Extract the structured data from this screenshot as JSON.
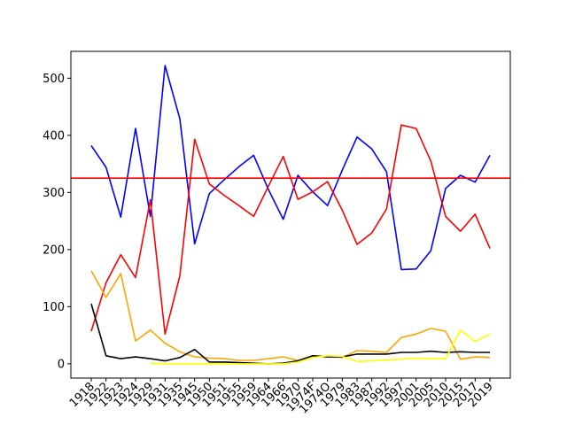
{
  "chart_data": {
    "type": "line",
    "title": "",
    "xlabel": "",
    "ylabel": "",
    "x": [
      "1918",
      "1922",
      "1923",
      "1924",
      "1929",
      "1931",
      "1935",
      "1945",
      "1950",
      "1951",
      "1955",
      "1959",
      "1964",
      "1966",
      "1970",
      "1974F",
      "1974O",
      "1979",
      "1983",
      "1987",
      "1992",
      "1997",
      "2001",
      "2005",
      "2010",
      "2015",
      "2017",
      "2019"
    ],
    "ylim": [
      -25,
      547
    ],
    "yticks": [
      0,
      100,
      200,
      300,
      400,
      500
    ],
    "grid": false,
    "reference_line": {
      "y": 325,
      "color": "#ff0000"
    },
    "series": [
      {
        "color": "#0000ff",
        "values": [
          382,
          344,
          257,
          412,
          258,
          522,
          429,
          210,
          298,
          322,
          345,
          365,
          305,
          253,
          330,
          301,
          277,
          339,
          397,
          376,
          336,
          165,
          166,
          198,
          307,
          330,
          318,
          365
        ]
      },
      {
        "color": "#ff0000",
        "values": [
          57,
          142,
          191,
          151,
          287,
          52,
          154,
          393,
          315,
          295,
          277,
          258,
          311,
          363,
          288,
          301,
          319,
          269,
          209,
          229,
          271,
          418,
          412,
          355,
          258,
          232,
          262,
          202
        ]
      },
      {
        "color": "#ffa500",
        "values": [
          163,
          116,
          158,
          40,
          59,
          36,
          21,
          12,
          10,
          9,
          6,
          6,
          9,
          12,
          6,
          14,
          13,
          11,
          23,
          22,
          20,
          46,
          52,
          62,
          57,
          8,
          12,
          11
        ]
      },
      {
        "color": "#000000",
        "values": [
          105,
          14,
          9,
          12,
          9,
          5,
          11,
          25,
          3,
          3,
          2,
          1,
          0,
          1,
          5,
          14,
          12,
          12,
          17,
          17,
          17,
          20,
          20,
          22,
          20,
          21,
          20,
          20
        ]
      },
      {
        "color": "#ffff00",
        "values": [
          null,
          null,
          null,
          null,
          1,
          0,
          0,
          0,
          0,
          0,
          0,
          0,
          0,
          0,
          3,
          11,
          14,
          13,
          4,
          5,
          7,
          8,
          10,
          9,
          9,
          59,
          39,
          52
        ]
      }
    ]
  }
}
